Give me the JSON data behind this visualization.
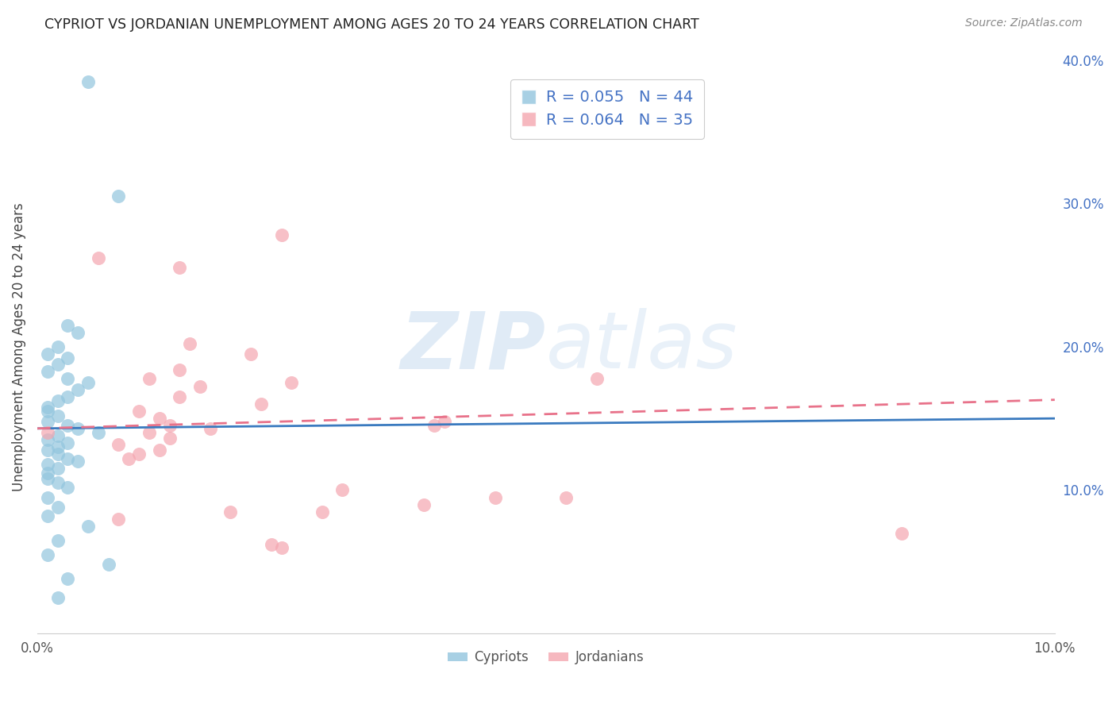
{
  "title": "CYPRIOT VS JORDANIAN UNEMPLOYMENT AMONG AGES 20 TO 24 YEARS CORRELATION CHART",
  "source": "Source: ZipAtlas.com",
  "ylabel": "Unemployment Among Ages 20 to 24 years",
  "x_min": 0.0,
  "x_max": 0.1,
  "y_min": 0.0,
  "y_max": 0.4,
  "x_ticks": [
    0.0,
    0.02,
    0.04,
    0.06,
    0.08,
    0.1
  ],
  "x_tick_labels": [
    "0.0%",
    "",
    "",
    "",
    "",
    "10.0%"
  ],
  "y_ticks_right": [
    0.1,
    0.2,
    0.3,
    0.4
  ],
  "y_tick_labels_right": [
    "10.0%",
    "20.0%",
    "30.0%",
    "40.0%"
  ],
  "cypriot_color": "#92c5de",
  "jordanian_color": "#f4a6b0",
  "trend_cypriot_color": "#3a7abf",
  "trend_jordanian_color": "#e8728a",
  "background_color": "#ffffff",
  "watermark_zip": "ZIP",
  "watermark_atlas": "atlas",
  "cypriot_points_x": [
    0.005,
    0.008,
    0.003,
    0.004,
    0.002,
    0.001,
    0.003,
    0.002,
    0.001,
    0.003,
    0.005,
    0.004,
    0.003,
    0.002,
    0.001,
    0.001,
    0.002,
    0.001,
    0.003,
    0.004,
    0.006,
    0.002,
    0.001,
    0.003,
    0.002,
    0.001,
    0.002,
    0.003,
    0.004,
    0.001,
    0.002,
    0.001,
    0.001,
    0.002,
    0.003,
    0.001,
    0.002,
    0.001,
    0.005,
    0.002,
    0.001,
    0.007,
    0.003,
    0.002
  ],
  "cypriot_points_y": [
    0.385,
    0.305,
    0.215,
    0.21,
    0.2,
    0.195,
    0.192,
    0.188,
    0.183,
    0.178,
    0.175,
    0.17,
    0.165,
    0.162,
    0.158,
    0.155,
    0.152,
    0.148,
    0.145,
    0.143,
    0.14,
    0.138,
    0.135,
    0.133,
    0.13,
    0.128,
    0.125,
    0.122,
    0.12,
    0.118,
    0.115,
    0.112,
    0.108,
    0.105,
    0.102,
    0.095,
    0.088,
    0.082,
    0.075,
    0.065,
    0.055,
    0.048,
    0.038,
    0.025
  ],
  "jordanian_points_x": [
    0.024,
    0.006,
    0.014,
    0.015,
    0.014,
    0.011,
    0.025,
    0.016,
    0.014,
    0.022,
    0.01,
    0.012,
    0.013,
    0.017,
    0.011,
    0.013,
    0.008,
    0.012,
    0.01,
    0.009,
    0.021,
    0.04,
    0.039,
    0.055,
    0.045,
    0.03,
    0.052,
    0.038,
    0.028,
    0.019,
    0.024,
    0.023,
    0.008,
    0.085,
    0.001
  ],
  "jordanian_points_y": [
    0.278,
    0.262,
    0.255,
    0.202,
    0.184,
    0.178,
    0.175,
    0.172,
    0.165,
    0.16,
    0.155,
    0.15,
    0.145,
    0.143,
    0.14,
    0.136,
    0.132,
    0.128,
    0.125,
    0.122,
    0.195,
    0.148,
    0.145,
    0.178,
    0.095,
    0.1,
    0.095,
    0.09,
    0.085,
    0.085,
    0.06,
    0.062,
    0.08,
    0.07,
    0.14
  ],
  "cypriot_trend_x": [
    0.0,
    0.1
  ],
  "cypriot_trend_y": [
    0.143,
    0.15
  ],
  "jordanian_trend_x": [
    0.0,
    0.1
  ],
  "jordanian_trend_y": [
    0.143,
    0.163
  ],
  "legend_r1": "R = 0.055",
  "legend_n1": "N = 44",
  "legend_r2": "R = 0.064",
  "legend_n2": "N = 35"
}
